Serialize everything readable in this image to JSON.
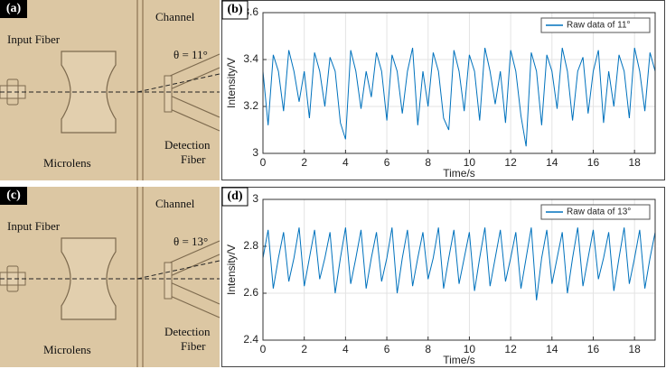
{
  "figures": [
    {
      "label": "(a)",
      "input_fiber": "Input Fiber",
      "channel": "Channel",
      "angle": "θ = 11°",
      "microlens": "Microlens",
      "detection_fiber": [
        "Detection",
        "Fiber"
      ]
    },
    {
      "label": "(c)",
      "input_fiber": "Input Fiber",
      "channel": "Channel",
      "angle": "θ = 13°",
      "microlens": "Microlens",
      "detection_fiber": [
        "Detection",
        "Fiber"
      ]
    }
  ],
  "chart_data": [
    {
      "type": "line",
      "label": "(b)",
      "xlabel": "Time/s",
      "ylabel": "Intensity/V",
      "xlim": [
        0,
        19
      ],
      "xticks": [
        0,
        2,
        4,
        6,
        8,
        10,
        12,
        14,
        16,
        18
      ],
      "ylim": [
        3,
        3.6
      ],
      "yticks": [
        3,
        3.2,
        3.4,
        3.6
      ],
      "grid": true,
      "legend": "upper right",
      "x": [
        0,
        0.25,
        0.5,
        0.75,
        1,
        1.25,
        1.5,
        1.75,
        2,
        2.25,
        2.5,
        2.75,
        3,
        3.25,
        3.5,
        3.75,
        4,
        4.25,
        4.5,
        4.75,
        5,
        5.25,
        5.5,
        5.75,
        6,
        6.25,
        6.5,
        6.75,
        7,
        7.25,
        7.5,
        7.75,
        8,
        8.25,
        8.5,
        8.75,
        9,
        9.25,
        9.5,
        9.75,
        10,
        10.25,
        10.5,
        10.75,
        11,
        11.25,
        11.5,
        11.75,
        12,
        12.25,
        12.5,
        12.75,
        13,
        13.25,
        13.5,
        13.75,
        14,
        14.25,
        14.5,
        14.75,
        15,
        15.25,
        15.5,
        15.75,
        16,
        16.25,
        16.5,
        16.75,
        17,
        17.25,
        17.5,
        17.75,
        18,
        18.25,
        18.5,
        18.75,
        19
      ],
      "series": [
        {
          "name": "Raw data of 11°",
          "color": "#0072bd",
          "values": [
            3.35,
            3.12,
            3.42,
            3.35,
            3.18,
            3.44,
            3.35,
            3.22,
            3.35,
            3.15,
            3.43,
            3.35,
            3.2,
            3.41,
            3.35,
            3.13,
            3.06,
            3.44,
            3.35,
            3.19,
            3.35,
            3.24,
            3.43,
            3.35,
            3.14,
            3.42,
            3.35,
            3.17,
            3.35,
            3.45,
            3.12,
            3.35,
            3.2,
            3.43,
            3.35,
            3.15,
            3.1,
            3.44,
            3.35,
            3.18,
            3.42,
            3.35,
            3.14,
            3.45,
            3.35,
            3.21,
            3.35,
            3.13,
            3.44,
            3.35,
            3.16,
            3.03,
            3.43,
            3.35,
            3.12,
            3.42,
            3.35,
            3.19,
            3.45,
            3.35,
            3.14,
            3.35,
            3.41,
            3.17,
            3.35,
            3.44,
            3.13,
            3.35,
            3.2,
            3.42,
            3.35,
            3.15,
            3.45,
            3.35,
            3.18,
            3.43,
            3.35
          ]
        }
      ]
    },
    {
      "type": "line",
      "label": "(d)",
      "xlabel": "Time/s",
      "ylabel": "Intensity/V",
      "xlim": [
        0,
        19
      ],
      "xticks": [
        0,
        2,
        4,
        6,
        8,
        10,
        12,
        14,
        16,
        18
      ],
      "ylim": [
        2.4,
        3
      ],
      "yticks": [
        2.4,
        2.6,
        2.8,
        3
      ],
      "grid": true,
      "legend": "upper right",
      "x": [
        0,
        0.25,
        0.5,
        0.75,
        1,
        1.25,
        1.5,
        1.75,
        2,
        2.25,
        2.5,
        2.75,
        3,
        3.25,
        3.5,
        3.75,
        4,
        4.25,
        4.5,
        4.75,
        5,
        5.25,
        5.5,
        5.75,
        6,
        6.25,
        6.5,
        6.75,
        7,
        7.25,
        7.5,
        7.75,
        8,
        8.25,
        8.5,
        8.75,
        9,
        9.25,
        9.5,
        9.75,
        10,
        10.25,
        10.5,
        10.75,
        11,
        11.25,
        11.5,
        11.75,
        12,
        12.25,
        12.5,
        12.75,
        13,
        13.25,
        13.5,
        13.75,
        14,
        14.25,
        14.5,
        14.75,
        15,
        15.25,
        15.5,
        15.75,
        16,
        16.25,
        16.5,
        16.75,
        17,
        17.25,
        17.5,
        17.75,
        18,
        18.25,
        18.5,
        18.75,
        19
      ],
      "series": [
        {
          "name": "Raw data of 13°",
          "color": "#0072bd",
          "values": [
            2.75,
            2.87,
            2.62,
            2.75,
            2.86,
            2.65,
            2.75,
            2.88,
            2.63,
            2.75,
            2.87,
            2.66,
            2.75,
            2.86,
            2.6,
            2.75,
            2.88,
            2.64,
            2.75,
            2.87,
            2.62,
            2.75,
            2.86,
            2.65,
            2.75,
            2.88,
            2.6,
            2.75,
            2.87,
            2.63,
            2.75,
            2.86,
            2.66,
            2.75,
            2.88,
            2.62,
            2.75,
            2.87,
            2.64,
            2.75,
            2.86,
            2.61,
            2.75,
            2.88,
            2.63,
            2.75,
            2.87,
            2.65,
            2.75,
            2.86,
            2.62,
            2.75,
            2.88,
            2.57,
            2.75,
            2.87,
            2.64,
            2.75,
            2.86,
            2.6,
            2.75,
            2.88,
            2.63,
            2.75,
            2.87,
            2.66,
            2.75,
            2.86,
            2.61,
            2.75,
            2.88,
            2.64,
            2.75,
            2.87,
            2.62,
            2.75,
            2.86
          ]
        }
      ]
    }
  ]
}
